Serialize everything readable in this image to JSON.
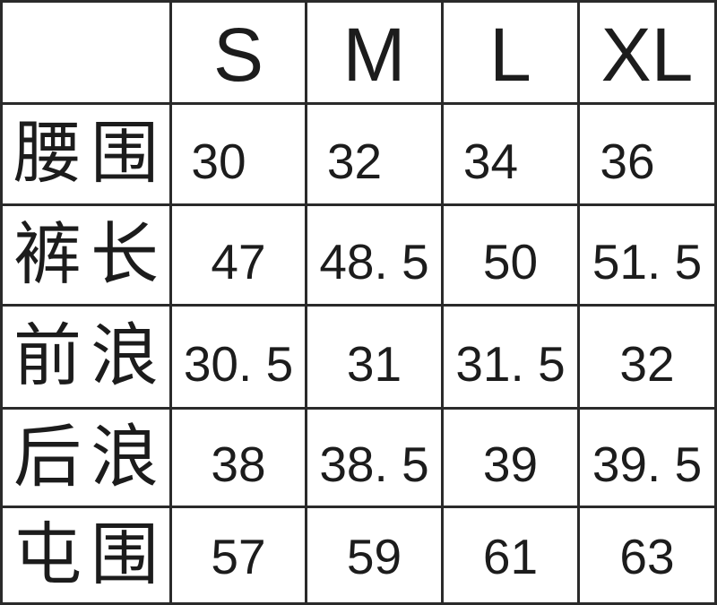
{
  "chart_data": {
    "type": "table",
    "columns": [
      "",
      "S",
      "M",
      "L",
      "XL"
    ],
    "rows": [
      {
        "label": "腰围",
        "label_chars": [
          "腰",
          "围"
        ],
        "values": [
          30,
          32,
          34,
          36
        ],
        "display": [
          "30",
          "32",
          "34",
          "36"
        ]
      },
      {
        "label": "裤长",
        "label_chars": [
          "裤",
          "长"
        ],
        "values": [
          47,
          48.5,
          50,
          51.5
        ],
        "display": [
          "47",
          "48. 5",
          "50",
          "51. 5"
        ]
      },
      {
        "label": "前浪",
        "label_chars": [
          "前",
          "浪"
        ],
        "values": [
          30.5,
          31,
          31.5,
          32
        ],
        "display": [
          "30. 5",
          "31",
          "31. 5",
          "32"
        ]
      },
      {
        "label": "后浪",
        "label_chars": [
          "后",
          "浪"
        ],
        "values": [
          38,
          38.5,
          39,
          39.5
        ],
        "display": [
          "38",
          "38. 5",
          "39",
          "39. 5"
        ]
      },
      {
        "label": "屯围",
        "label_chars": [
          "屯",
          "围"
        ],
        "values": [
          57,
          59,
          61,
          63
        ],
        "display": [
          "57",
          "59",
          "61",
          "63"
        ]
      }
    ],
    "legend": null,
    "grid": true
  },
  "style": {
    "border_color": "#2a2a2a",
    "text_color": "#1c1c1c",
    "background": "#ffffff"
  }
}
